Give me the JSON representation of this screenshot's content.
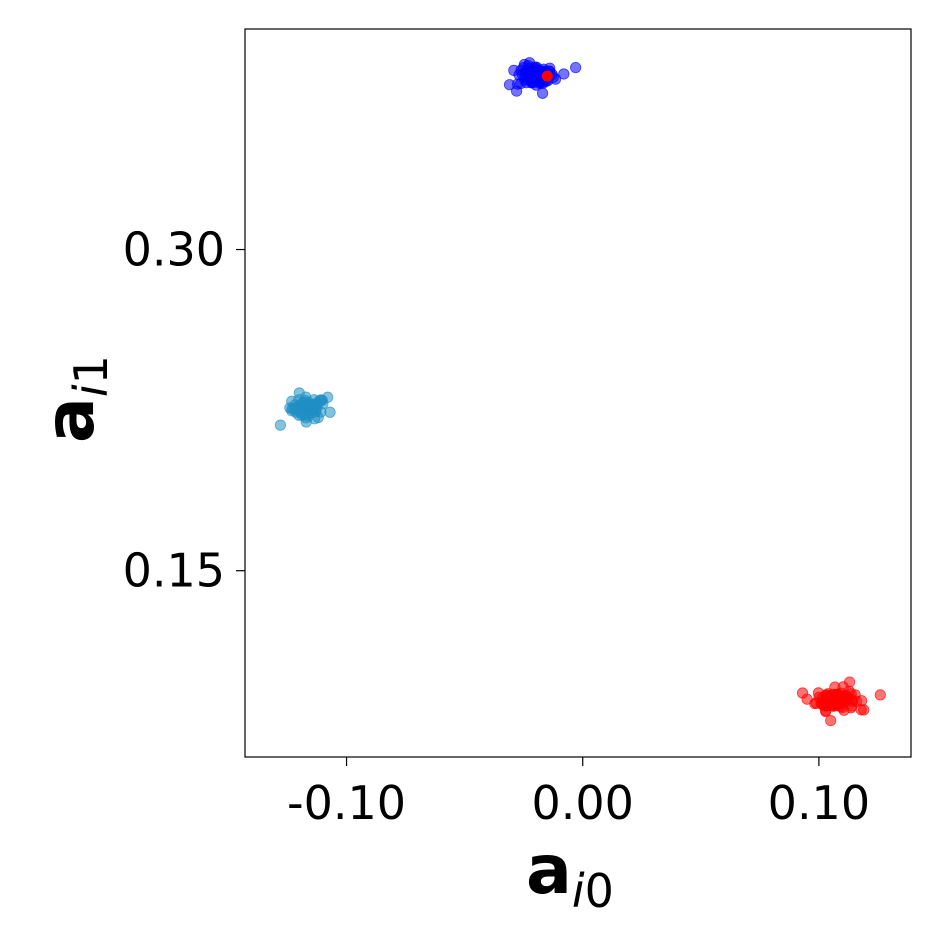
{
  "chart_data": {
    "type": "scatter",
    "title": "",
    "xlabel": {
      "main": "a",
      "sub_index": "i",
      "sub_digit": "0"
    },
    "ylabel": {
      "main": "a",
      "sub_index": "i",
      "sub_digit": "1"
    },
    "xlim": [
      -0.143,
      0.139
    ],
    "ylim": [
      0.063,
      0.403
    ],
    "xticks": [
      {
        "value": -0.1,
        "label": "-0.10"
      },
      {
        "value": 0.0,
        "label": "0.00"
      },
      {
        "value": 0.1,
        "label": "0.10"
      }
    ],
    "yticks": [
      {
        "value": 0.15,
        "label": "0.15"
      },
      {
        "value": 0.3,
        "label": "0.30"
      }
    ],
    "grid": false,
    "legend": "none",
    "series": [
      {
        "color": "#1f8fc4",
        "center": [
          -0.116,
          0.226
        ],
        "spread": [
          0.0035,
          0.0025
        ],
        "points": [
          [
            -0.128,
            0.218
          ],
          [
            -0.12,
            0.233
          ],
          [
            -0.108,
            0.231
          ],
          [
            -0.107,
            0.224
          ],
          [
            -0.124,
            0.226
          ],
          [
            -0.11,
            0.228
          ]
        ],
        "cluster_count": 60
      },
      {
        "color": "#0000ff",
        "center": [
          -0.02,
          0.381
        ],
        "spread": [
          0.004,
          0.0025
        ],
        "points": [
          [
            -0.031,
            0.377
          ],
          [
            -0.028,
            0.374
          ],
          [
            -0.003,
            0.385
          ],
          [
            -0.008,
            0.382
          ],
          [
            -0.016,
            0.383
          ],
          [
            -0.025,
            0.385
          ],
          [
            -0.017,
            0.373
          ]
        ],
        "cluster_count": 80
      },
      {
        "color": "#ff0000",
        "center": [
          0.107,
          0.09
        ],
        "spread": [
          0.004,
          0.0025
        ],
        "points": [
          [
            0.126,
            0.092
          ],
          [
            0.095,
            0.09
          ],
          [
            0.119,
            0.085
          ],
          [
            0.105,
            0.08
          ],
          [
            0.113,
            0.098
          ]
        ],
        "cluster_count": 90
      }
    ],
    "highlight": {
      "color": "#ff0000",
      "x": -0.015,
      "y": 0.381
    }
  }
}
